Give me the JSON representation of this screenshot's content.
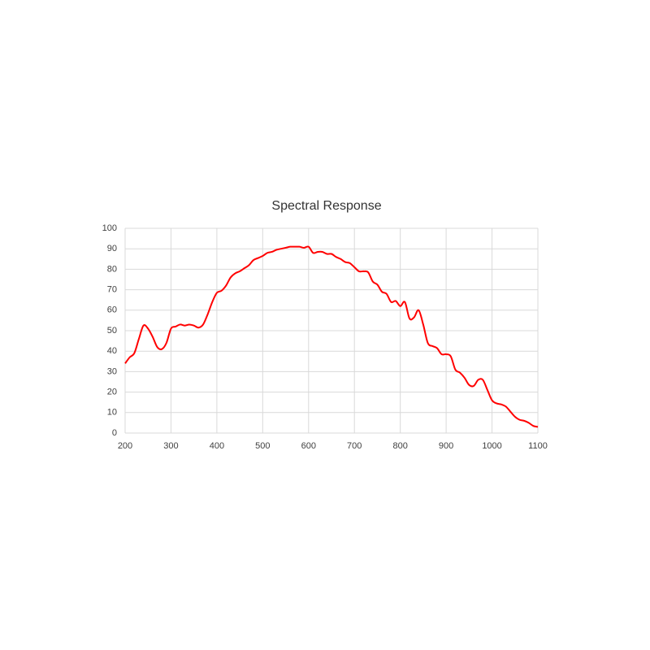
{
  "chart_data": {
    "type": "line",
    "title": "Spectral Response",
    "x": [
      200,
      210,
      220,
      230,
      240,
      250,
      260,
      270,
      280,
      290,
      300,
      310,
      320,
      330,
      340,
      350,
      360,
      370,
      380,
      390,
      400,
      410,
      420,
      430,
      440,
      450,
      460,
      470,
      480,
      490,
      500,
      510,
      520,
      530,
      540,
      550,
      560,
      570,
      580,
      590,
      600,
      610,
      620,
      630,
      640,
      650,
      660,
      670,
      680,
      690,
      700,
      710,
      720,
      730,
      740,
      750,
      760,
      770,
      780,
      790,
      800,
      810,
      820,
      830,
      840,
      850,
      860,
      870,
      880,
      890,
      900,
      910,
      920,
      930,
      940,
      950,
      960,
      970,
      980,
      990,
      1000,
      1010,
      1020,
      1030,
      1040,
      1050,
      1060,
      1070,
      1080,
      1090,
      1100
    ],
    "series": [
      {
        "color": "#ff0000",
        "values": [
          34,
          37,
          39,
          46,
          52.5,
          51,
          47,
          42,
          41,
          44,
          51,
          52,
          53,
          52.5,
          53,
          52.5,
          51.5,
          53,
          58,
          64,
          68.5,
          69.5,
          72,
          76,
          78,
          79,
          80.5,
          82,
          84.5,
          85.5,
          86.5,
          88,
          88.5,
          89.5,
          90,
          90.5,
          91,
          91,
          91,
          90.5,
          91,
          88,
          88.5,
          88.5,
          87.5,
          87.5,
          86,
          85,
          83.5,
          83,
          81,
          79,
          79,
          78.5,
          74,
          72.5,
          69,
          68,
          64,
          64.5,
          62,
          64,
          56,
          56.5,
          60,
          53,
          44,
          42.5,
          41.5,
          38.5,
          38.5,
          37.5,
          31,
          29.5,
          27,
          23.5,
          23,
          26,
          26,
          21,
          16,
          14.5,
          14,
          13,
          10.5,
          8,
          6.5,
          6,
          5,
          3.5,
          3
        ]
      }
    ],
    "xlim": [
      200,
      1100
    ],
    "xticks": [
      200,
      300,
      400,
      500,
      600,
      700,
      800,
      900,
      1000,
      1100
    ],
    "ylim": [
      0,
      100
    ],
    "yticks": [
      0,
      10,
      20,
      30,
      40,
      50,
      60,
      70,
      80,
      90,
      100
    ],
    "grid": true
  }
}
